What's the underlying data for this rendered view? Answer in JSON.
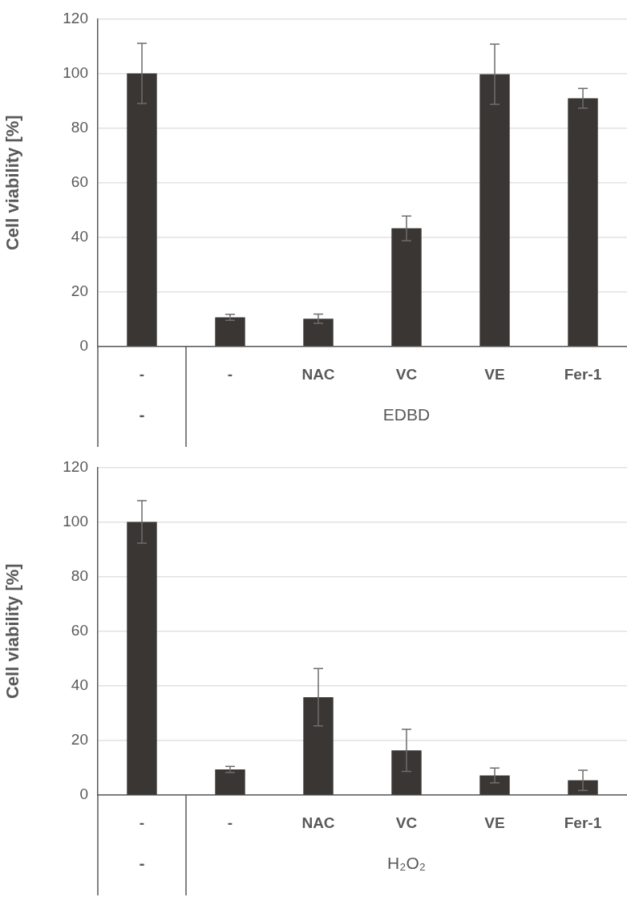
{
  "chart_data": [
    {
      "type": "bar",
      "ylabel": "Cell viability [%]",
      "categories": [
        "-",
        "-",
        "NAC",
        "VC",
        "VE",
        "Fer-1"
      ],
      "values": [
        100,
        10.7,
        10.2,
        43.3,
        99.7,
        90.9
      ],
      "errors": [
        11,
        1.1,
        1.7,
        4.5,
        11,
        3.6
      ],
      "color": "#3a3634",
      "ylim": [
        0,
        120
      ],
      "yticks": [
        0,
        20,
        40,
        60,
        80,
        100,
        120
      ],
      "grid": "y",
      "annotations": [
        "-",
        "EDBD"
      ]
    },
    {
      "type": "bar",
      "ylabel": "Cell viability [%]",
      "categories": [
        "-",
        "-",
        "NAC",
        "VC",
        "VE",
        "Fer-1"
      ],
      "values": [
        100,
        9.4,
        35.8,
        16.4,
        7.2,
        5.4
      ],
      "errors": [
        7.8,
        1.1,
        10.5,
        7.7,
        2.7,
        3.7
      ],
      "color": "#3a3634",
      "ylim": [
        0,
        120
      ],
      "yticks": [
        0,
        20,
        40,
        60,
        80,
        100,
        120
      ],
      "grid": "y",
      "annotations": [
        "-",
        "H₂O₂"
      ]
    }
  ]
}
